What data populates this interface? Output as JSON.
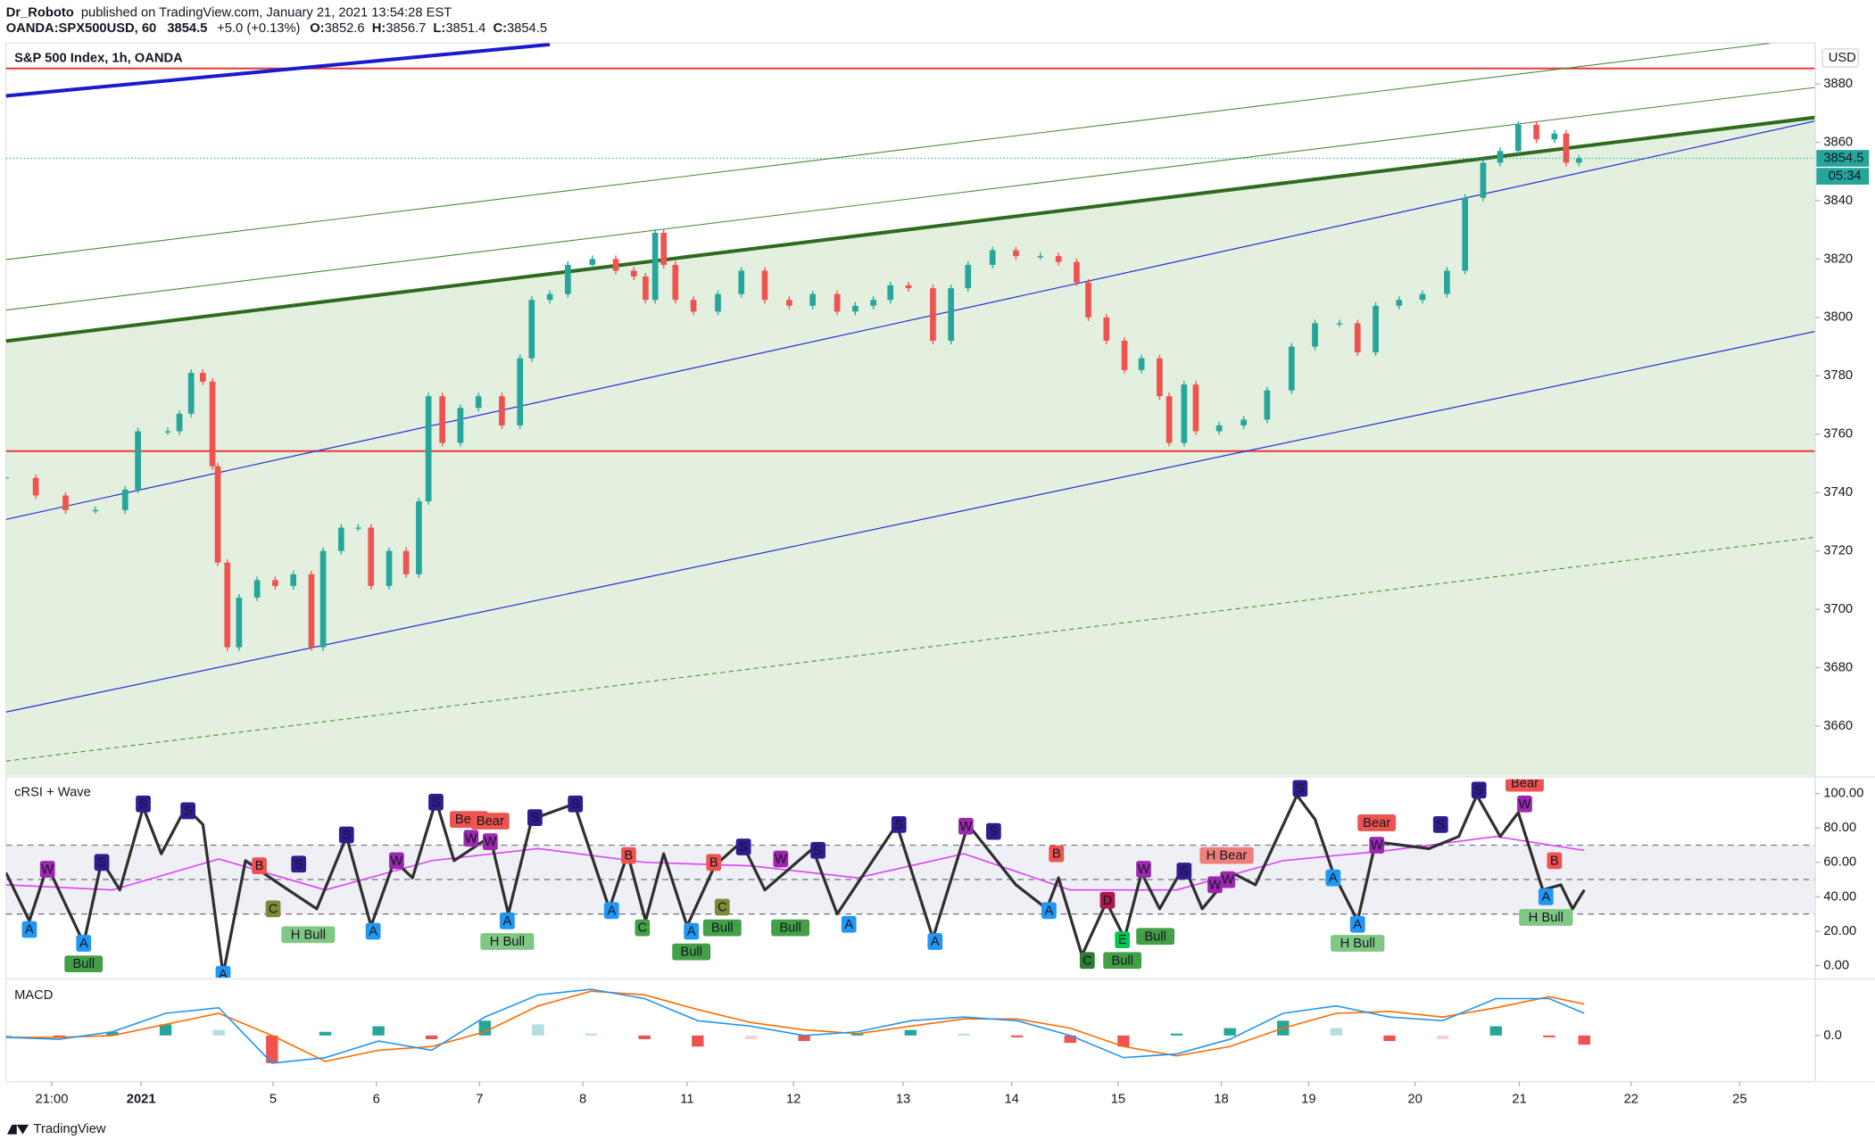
{
  "header": {
    "author": "Dr_Roboto",
    "published": "published on TradingView.com, January 21, 2021 13:54:28 EST",
    "symbol": "OANDA:SPX500USD, 60",
    "last": 3854.5,
    "change": "+5.0 (+0.13%)",
    "ohlc": [
      {
        "label": "O:",
        "value": 3852.6
      },
      {
        "label": "H:",
        "value": 3856.7
      },
      {
        "label": "L:",
        "value": 3851.4
      },
      {
        "label": "C:",
        "value": 3854.5
      }
    ]
  },
  "chart_data": [
    {
      "type": "candlestick",
      "title": "S&P 500 Index, 1h, OANDA",
      "currency": "USD",
      "countdown": "05:34",
      "up_color": "#26a69a",
      "down_color": "#ef5350",
      "xlim": [
        0,
        17
      ],
      "ylim": [
        3643,
        3894
      ],
      "yticks": [
        3660,
        3680,
        3700,
        3720,
        3740,
        3760,
        3780,
        3800,
        3820,
        3840,
        3860,
        3880
      ],
      "grid": false,
      "x": [
        0,
        0.28,
        0.56,
        0.84,
        1.12,
        1.24,
        1.52,
        1.63,
        1.74,
        1.85,
        1.94,
        1.99,
        2.08,
        2.19,
        2.36,
        2.53,
        2.7,
        2.87,
        2.98,
        3.15,
        3.31,
        3.43,
        3.6,
        3.76,
        3.88,
        3.97,
        4.1,
        4.27,
        4.44,
        4.66,
        4.83,
        4.94,
        5.11,
        5.28,
        5.51,
        5.73,
        5.9,
        6.01,
        6.1,
        6.18,
        6.29,
        6.46,
        6.69,
        6.91,
        7.13,
        7.36,
        7.58,
        7.81,
        7.98,
        8.15,
        8.31,
        8.48,
        8.71,
        8.88,
        9.04,
        9.27,
        9.49,
        9.72,
        9.89,
        10.06,
        10.17,
        10.34,
        10.51,
        10.67,
        10.84,
        10.93,
        11.07,
        11.18,
        11.4,
        11.63,
        11.85,
        12.08,
        12.3,
        12.53,
        12.7,
        12.87,
        13.09,
        13.31,
        13.54,
        13.71,
        13.88,
        14.04,
        14.21,
        14.38,
        14.55,
        14.66,
        14.78
      ],
      "values": [
        3745,
        3739,
        3734,
        3734,
        3741,
        3761,
        3761,
        3767,
        3781,
        3778,
        3749,
        3716,
        3687,
        3704,
        3710,
        3708,
        3712,
        3687,
        3720,
        3728,
        3728,
        3708,
        3720,
        3712,
        3737,
        3773,
        3757,
        3769,
        3773,
        3763,
        3786,
        3806,
        3808,
        3818,
        3820,
        3816,
        3814,
        3806,
        3829,
        3818,
        3806,
        3802,
        3808,
        3816,
        3806,
        3804,
        3808,
        3802,
        3804,
        3806,
        3811,
        3810,
        3792,
        3810,
        3818,
        3823,
        3821,
        3821,
        3819,
        3812,
        3800,
        3792,
        3782,
        3786,
        3773,
        3757,
        3777,
        3761,
        3763,
        3765,
        3775,
        3790,
        3798,
        3798,
        3788,
        3804,
        3806,
        3808,
        3816,
        3841,
        3853,
        3857,
        3866,
        3861,
        3863,
        3853,
        3854.5
      ],
      "trendlines": [
        {
          "x": [
            0,
            17
          ],
          "y": [
            3791.9,
            3868.5
          ],
          "color": "#2e6b1f",
          "width": 3,
          "fill": "#e3f0df"
        },
        {
          "x": [
            0,
            17
          ],
          "y": [
            3885.3,
            3885.3
          ],
          "color": "#e53935",
          "width": 1.5
        },
        {
          "x": [
            0,
            17
          ],
          "y": [
            3754.2,
            3754.2
          ],
          "color": "#e53935",
          "width": 1.5
        },
        {
          "x": [
            0,
            5.11
          ],
          "y": [
            3875.9,
            3893.5
          ],
          "color": "#1a1ad0",
          "width": 3
        },
        {
          "x": [
            0,
            16.57
          ],
          "y": [
            3819.8,
            3893.9
          ],
          "color": "#4c8a3a",
          "width": 0.8
        },
        {
          "x": [
            0,
            17
          ],
          "y": [
            3802.5,
            3878.8
          ],
          "color": "#4c8a3a",
          "width": 0.8
        },
        {
          "x": [
            0,
            17
          ],
          "y": [
            3730.8,
            3867.3
          ],
          "color": "#2a2ad8",
          "width": 0.9
        },
        {
          "x": [
            0,
            17
          ],
          "y": [
            3664.8,
            3795.2
          ],
          "color": "#2a2ad8",
          "width": 0.9
        },
        {
          "x": [
            0,
            17
          ],
          "y": [
            3648,
            3724.7
          ],
          "color": "#4c8a3a",
          "width": 0.8,
          "dashed": true
        }
      ]
    },
    {
      "type": "line",
      "title": "cRSI + Wave",
      "xlim": [
        0,
        17
      ],
      "ylim": [
        -7,
        108.3
      ],
      "yticks": [
        {
          "value": 0,
          "label": "0.00"
        },
        {
          "value": 20,
          "label": "20.00"
        },
        {
          "value": 40,
          "label": "40.00"
        },
        {
          "value": 60,
          "label": "60.00"
        },
        {
          "value": 80,
          "label": "80.00"
        },
        {
          "value": 100,
          "label": "100.00"
        }
      ],
      "levels": [
        70,
        50,
        30
      ],
      "series": [
        {
          "color": "#2f2f2f",
          "width": 2.4,
          "x": [
            0,
            0.22,
            0.39,
            0.73,
            0.9,
            1.07,
            1.29,
            1.46,
            1.69,
            1.85,
            2.04,
            2.25,
            2.58,
            2.92,
            3.2,
            3.43,
            3.65,
            3.82,
            4.04,
            4.21,
            4.55,
            4.72,
            4.94,
            5.34,
            5.67,
            5.84,
            6.01,
            6.18,
            6.4,
            6.66,
            6.91,
            7.13,
            7.58,
            7.81,
            8.37,
            8.71,
            9.04,
            9.49,
            9.78,
            9.89,
            10.11,
            10.34,
            10.51,
            10.67,
            10.84,
            11.07,
            11.24,
            11.52,
            11.74,
            12.13,
            12.3,
            12.47,
            12.7,
            12.87,
            13.37,
            13.65,
            13.82,
            14.04,
            14.21,
            14.44,
            14.61,
            14.72,
            14.83
          ],
          "values": [
            54,
            26,
            58,
            13,
            61,
            44,
            92,
            65,
            92,
            82,
            -5,
            61,
            47,
            33,
            75,
            23,
            61,
            51,
            96,
            61,
            75,
            30,
            85,
            94,
            33,
            65,
            26,
            65,
            23,
            58,
            72,
            44,
            68,
            30,
            82,
            16,
            82,
            47,
            33,
            51,
            6,
            37,
            16,
            54,
            33,
            58,
            33,
            54,
            47,
            99,
            85,
            54,
            26,
            72,
            68,
            75,
            99,
            75,
            89,
            44,
            47,
            33,
            44
          ]
        },
        {
          "color": "#e040fb",
          "width": 1.2,
          "x": [
            0,
            1,
            2,
            3,
            4,
            5,
            6,
            7,
            8,
            9,
            10,
            11,
            12,
            13,
            14,
            14.83
          ],
          "values": [
            47,
            44,
            62,
            44,
            61,
            68,
            60,
            58,
            51,
            65,
            44,
            44,
            61,
            67,
            75,
            67
          ]
        }
      ],
      "signals": [
        {
          "label": "W",
          "x": 0.39,
          "y": 56,
          "color": "#9c27b0"
        },
        {
          "label": "A",
          "x": 0.22,
          "y": 21,
          "color": "#2196f3"
        },
        {
          "label": "Bull",
          "x": 0.73,
          "y": 1,
          "color": "#43a047"
        },
        {
          "label": "A",
          "x": 0.73,
          "y": 13,
          "color": "#2196f3"
        },
        {
          "label": "S",
          "x": 0.9,
          "y": 60,
          "color": "#311b92"
        },
        {
          "label": "S",
          "x": 1.29,
          "y": 94,
          "color": "#311b92"
        },
        {
          "label": "S",
          "x": 1.71,
          "y": 90,
          "color": "#311b92"
        },
        {
          "label": "A",
          "x": 2.04,
          "y": -5,
          "color": "#2196f3"
        },
        {
          "label": "B",
          "x": 2.38,
          "y": 58,
          "color": "#ef5350"
        },
        {
          "label": "C",
          "x": 2.51,
          "y": 33,
          "color": "#7c8a3a"
        },
        {
          "label": "H Bull",
          "x": 2.84,
          "y": 18,
          "color": "#81c784"
        },
        {
          "label": "S",
          "x": 2.75,
          "y": 59,
          "color": "#311b92"
        },
        {
          "label": "S",
          "x": 3.2,
          "y": 76,
          "color": "#311b92"
        },
        {
          "label": "A",
          "x": 3.45,
          "y": 20,
          "color": "#2196f3"
        },
        {
          "label": "W",
          "x": 3.67,
          "y": 61,
          "color": "#9c27b0"
        },
        {
          "label": "S",
          "x": 4.04,
          "y": 95,
          "color": "#311b92"
        },
        {
          "label": "Bear",
          "x": 4.35,
          "y": 85,
          "color": "#ef5350"
        },
        {
          "label": "Bear",
          "x": 4.55,
          "y": 84,
          "color": "#ef5350"
        },
        {
          "label": "W",
          "x": 4.37,
          "y": 74,
          "color": "#9c27b0"
        },
        {
          "label": "W",
          "x": 4.55,
          "y": 72,
          "color": "#9c27b0"
        },
        {
          "label": "A",
          "x": 4.71,
          "y": 26,
          "color": "#2196f3"
        },
        {
          "label": "H Bull",
          "x": 4.71,
          "y": 14,
          "color": "#81c784"
        },
        {
          "label": "S",
          "x": 4.97,
          "y": 86,
          "color": "#311b92"
        },
        {
          "label": "S",
          "x": 5.35,
          "y": 94,
          "color": "#311b92"
        },
        {
          "label": "B",
          "x": 5.85,
          "y": 64,
          "color": "#ef5350"
        },
        {
          "label": "A",
          "x": 5.69,
          "y": 32,
          "color": "#2196f3"
        },
        {
          "label": "C",
          "x": 5.98,
          "y": 22,
          "color": "#43a047"
        },
        {
          "label": "A",
          "x": 6.44,
          "y": 20,
          "color": "#2196f3"
        },
        {
          "label": "Bull",
          "x": 6.44,
          "y": 8,
          "color": "#43a047"
        },
        {
          "label": "B",
          "x": 6.65,
          "y": 60,
          "color": "#ef5350"
        },
        {
          "label": "C",
          "x": 6.73,
          "y": 34,
          "color": "#7c8a3a"
        },
        {
          "label": "Bull",
          "x": 6.73,
          "y": 22,
          "color": "#43a047"
        },
        {
          "label": "S",
          "x": 6.93,
          "y": 69,
          "color": "#311b92"
        },
        {
          "label": "W",
          "x": 7.28,
          "y": 62,
          "color": "#9c27b0"
        },
        {
          "label": "S",
          "x": 7.63,
          "y": 67,
          "color": "#311b92"
        },
        {
          "label": "Bull",
          "x": 7.37,
          "y": 22,
          "color": "#43a047"
        },
        {
          "label": "A",
          "x": 7.92,
          "y": 24,
          "color": "#2196f3"
        },
        {
          "label": "S",
          "x": 8.39,
          "y": 82,
          "color": "#311b92"
        },
        {
          "label": "A",
          "x": 8.73,
          "y": 14,
          "color": "#2196f3"
        },
        {
          "label": "W",
          "x": 9.02,
          "y": 81,
          "color": "#9c27b0"
        },
        {
          "label": "S",
          "x": 9.28,
          "y": 78,
          "color": "#311b92"
        },
        {
          "label": "B",
          "x": 9.87,
          "y": 65,
          "color": "#ef5350"
        },
        {
          "label": "A",
          "x": 9.8,
          "y": 32,
          "color": "#2196f3"
        },
        {
          "label": "D",
          "x": 10.35,
          "y": 38,
          "color": "#b0174f"
        },
        {
          "label": "C",
          "x": 10.16,
          "y": 3,
          "color": "#2e7d32"
        },
        {
          "label": "E",
          "x": 10.49,
          "y": 15,
          "color": "#00c853"
        },
        {
          "label": "Bull",
          "x": 10.49,
          "y": 3,
          "color": "#43a047"
        },
        {
          "label": "Bull",
          "x": 10.8,
          "y": 17,
          "color": "#43a047"
        },
        {
          "label": "W",
          "x": 10.69,
          "y": 56,
          "color": "#9c27b0"
        },
        {
          "label": "S",
          "x": 11.07,
          "y": 55,
          "color": "#311b92"
        },
        {
          "label": "W",
          "x": 11.36,
          "y": 47,
          "color": "#9c27b0"
        },
        {
          "label": "W",
          "x": 11.48,
          "y": 50,
          "color": "#9c27b0"
        },
        {
          "label": "H Bear",
          "x": 11.47,
          "y": 64,
          "color": "#ef7d7a"
        },
        {
          "label": "S",
          "x": 12.16,
          "y": 103,
          "color": "#311b92"
        },
        {
          "label": "A",
          "x": 12.47,
          "y": 51,
          "color": "#2196f3"
        },
        {
          "label": "A",
          "x": 12.7,
          "y": 24,
          "color": "#2196f3"
        },
        {
          "label": "H Bull",
          "x": 12.7,
          "y": 13,
          "color": "#81c784"
        },
        {
          "label": "Bear",
          "x": 12.88,
          "y": 83,
          "color": "#ef5350"
        },
        {
          "label": "W",
          "x": 12.88,
          "y": 70,
          "color": "#9c27b0"
        },
        {
          "label": "S",
          "x": 13.48,
          "y": 82,
          "color": "#311b92"
        },
        {
          "label": "S",
          "x": 13.84,
          "y": 102,
          "color": "#311b92"
        },
        {
          "label": "Bear",
          "x": 14.27,
          "y": 106,
          "color": "#ef5350"
        },
        {
          "label": "W",
          "x": 14.27,
          "y": 94,
          "color": "#9c27b0"
        },
        {
          "label": "B",
          "x": 14.55,
          "y": 61,
          "color": "#ef5350"
        },
        {
          "label": "A",
          "x": 14.47,
          "y": 40,
          "color": "#2196f3"
        },
        {
          "label": "H Bull",
          "x": 14.47,
          "y": 28,
          "color": "#81c784"
        }
      ]
    },
    {
      "type": "macd",
      "title": "MACD",
      "xlim": [
        0,
        17
      ],
      "ylim": [
        -25,
        30
      ],
      "yticks": [
        {
          "value": 0,
          "label": "0.0"
        }
      ],
      "x": [
        0,
        0.5,
        1,
        1.5,
        2,
        2.5,
        3,
        3.5,
        4,
        4.5,
        5,
        5.5,
        6,
        6.5,
        7,
        7.5,
        8,
        8.5,
        9,
        9.5,
        10,
        10.5,
        11,
        11.5,
        12,
        12.5,
        13,
        13.5,
        14,
        14.5,
        14.83
      ],
      "macd": [
        -1,
        -2,
        2,
        12,
        15,
        -15,
        -12,
        -3,
        -8,
        10,
        22,
        25,
        20,
        8,
        5,
        0,
        2,
        8,
        10,
        8,
        0,
        -12,
        -10,
        -2,
        12,
        16,
        10,
        8,
        20,
        20,
        12
      ],
      "signal": [
        -1,
        -1,
        0,
        6,
        12,
        0,
        -14,
        -8,
        -6,
        2,
        16,
        24,
        22,
        14,
        7,
        3,
        1,
        5,
        9,
        9,
        4,
        -6,
        -11,
        -6,
        4,
        12,
        13,
        10,
        15,
        21,
        17
      ],
      "histogram": [
        0,
        -1,
        2,
        6,
        3,
        -15,
        2,
        5,
        -2,
        8,
        6,
        1,
        -2,
        -6,
        -2,
        -3,
        1,
        3,
        1,
        -1,
        -4,
        -6,
        1,
        4,
        8,
        4,
        -3,
        -2,
        5,
        -1,
        -5
      ],
      "macd_color": "#2196f3",
      "signal_color": "#ff6d00",
      "xticks": [
        {
          "value": 0.43,
          "label": "21:00"
        },
        {
          "value": 1.27,
          "label": "2021"
        },
        {
          "value": 2.51,
          "label": "5"
        },
        {
          "value": 3.48,
          "label": "6"
        },
        {
          "value": 4.45,
          "label": "7"
        },
        {
          "value": 5.42,
          "label": "8"
        },
        {
          "value": 6.4,
          "label": "11"
        },
        {
          "value": 7.4,
          "label": "12"
        },
        {
          "value": 8.43,
          "label": "13"
        },
        {
          "value": 9.45,
          "label": "14"
        },
        {
          "value": 10.45,
          "label": "15"
        },
        {
          "value": 11.42,
          "label": "18"
        },
        {
          "value": 12.24,
          "label": "19"
        },
        {
          "value": 13.24,
          "label": "20"
        },
        {
          "value": 14.22,
          "label": "21"
        },
        {
          "value": 15.27,
          "label": "22"
        },
        {
          "value": 16.29,
          "label": "25"
        }
      ]
    }
  ],
  "footer": {
    "brand": "TradingView"
  }
}
